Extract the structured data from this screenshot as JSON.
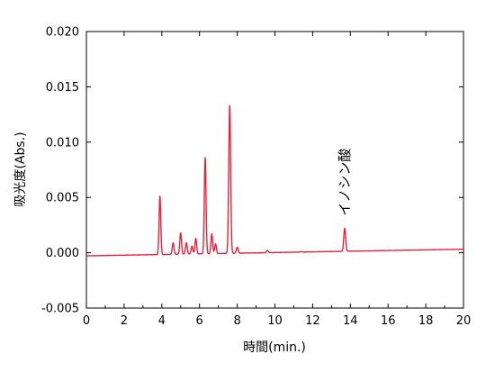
{
  "chart_data": {
    "type": "line",
    "title": "",
    "xlabel": "時間(min.)",
    "ylabel": "吸光度(Abs.)",
    "xlim": [
      0,
      20
    ],
    "ylim": [
      -0.005,
      0.02
    ],
    "x_ticks": [
      "0",
      "2",
      "4",
      "6",
      "8",
      "10",
      "12",
      "14",
      "16",
      "18",
      "20"
    ],
    "y_ticks": [
      "0.020",
      "0.015",
      "0.010",
      "0.005",
      "0.000",
      "-0.005"
    ],
    "grid": false,
    "legend": "none",
    "line_color": "#e8213a",
    "annotations": [
      {
        "text": "イノシン酸",
        "x": 13.7,
        "y": 0.0022
      }
    ],
    "series": [
      {
        "peaks": [
          {
            "x": 3.9,
            "y": 0.0051
          },
          {
            "x": 4.6,
            "y": 0.0009
          },
          {
            "x": 5.0,
            "y": 0.0018
          },
          {
            "x": 5.3,
            "y": 0.0009
          },
          {
            "x": 5.6,
            "y": 0.0006
          },
          {
            "x": 5.8,
            "y": 0.0013
          },
          {
            "x": 6.3,
            "y": 0.0086
          },
          {
            "x": 6.65,
            "y": 0.0017
          },
          {
            "x": 6.85,
            "y": 0.0008
          },
          {
            "x": 7.6,
            "y": 0.0133
          },
          {
            "x": 8.0,
            "y": 0.0005
          },
          {
            "x": 9.6,
            "y": 0.0002
          },
          {
            "x": 11.4,
            "y": 0.0001
          },
          {
            "x": 13.7,
            "y": 0.0022
          }
        ]
      }
    ]
  }
}
